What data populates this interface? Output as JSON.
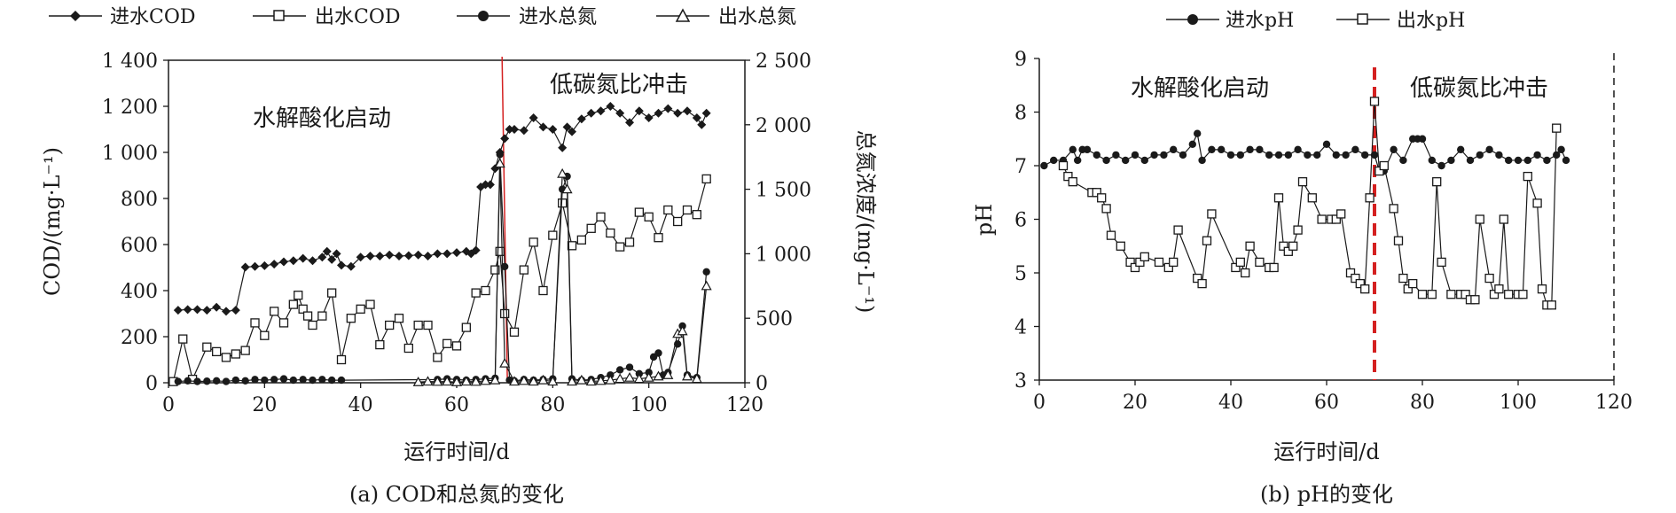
{
  "panel_a": {
    "caption": "(a) COD和总氮的变化",
    "xlabel": "运行时间/d",
    "ylabel_left": "COD/(mg·L⁻¹)",
    "ylabel_right": "总氮浓度/(mg·L⁻¹)",
    "legend": [
      "进水COD",
      "出水COD",
      "进水总氮",
      "出水总氮"
    ],
    "annotation_left": "水解酸化启动",
    "annotation_right": "低碳氮比冲击",
    "x_ticks": [
      "0",
      "20",
      "40",
      "60",
      "80",
      "100",
      "120"
    ],
    "y_left_ticks": [
      "0",
      "200",
      "400",
      "600",
      "800",
      "1 000",
      "1 200",
      "1 400"
    ],
    "y_right_ticks": [
      "0",
      "500",
      "1 000",
      "1 500",
      "2 000",
      "2 500"
    ]
  },
  "panel_b": {
    "caption": "(b) pH的变化",
    "xlabel": "运行时间/d",
    "ylabel": "pH",
    "legend": [
      "进水pH",
      "出水pH"
    ],
    "annotation_left": "水解酸化启动",
    "annotation_right": "低碳氮比冲击",
    "x_ticks": [
      "0",
      "20",
      "40",
      "60",
      "80",
      "100",
      "120"
    ],
    "y_ticks": [
      "3",
      "4",
      "5",
      "6",
      "7",
      "8",
      "9"
    ]
  },
  "colors": {
    "line": "#1a1a1a",
    "divider": "#d42020"
  },
  "chart_data": [
    {
      "type": "line",
      "title": "(a) COD和总氮的变化",
      "xlabel": "运行时间/d",
      "ylabel": "COD/(mg·L⁻¹)",
      "y2label": "总氮浓度/(mg·L⁻¹)",
      "xlim": [
        0,
        120
      ],
      "ylim": [
        0,
        1400
      ],
      "y2lim": [
        0,
        2500
      ],
      "grid": false,
      "legend_position": "top",
      "divider_x": 70,
      "series": [
        {
          "name": "进水COD",
          "axis": "left",
          "marker": "diamond-filled",
          "x": [
            2,
            4,
            6,
            8,
            10,
            12,
            14,
            16,
            18,
            20,
            22,
            24,
            26,
            28,
            30,
            32,
            33,
            34,
            35,
            36,
            38,
            40,
            42,
            44,
            46,
            48,
            50,
            52,
            54,
            56,
            58,
            60,
            62,
            63,
            64,
            65,
            66,
            67,
            68,
            69,
            70,
            71,
            72,
            74,
            76,
            78,
            80,
            82,
            83,
            84,
            86,
            88,
            90,
            92,
            94,
            96,
            98,
            100,
            102,
            104,
            106,
            108,
            110,
            111,
            112
          ],
          "y": [
            315,
            318,
            318,
            315,
            328,
            310,
            315,
            502,
            505,
            508,
            515,
            525,
            530,
            540,
            530,
            545,
            570,
            535,
            560,
            510,
            505,
            545,
            550,
            550,
            555,
            550,
            552,
            555,
            550,
            560,
            560,
            565,
            570,
            560,
            575,
            850,
            860,
            860,
            930,
            1000,
            1060,
            1100,
            1100,
            1095,
            1150,
            1110,
            1100,
            1020,
            1110,
            1090,
            1145,
            1170,
            1180,
            1200,
            1170,
            1130,
            1180,
            1150,
            1170,
            1190,
            1170,
            1180,
            1150,
            1120,
            1170
          ]
        },
        {
          "name": "出水COD",
          "axis": "left",
          "marker": "square-open",
          "x": [
            1,
            3,
            5,
            8,
            10,
            12,
            14,
            16,
            18,
            20,
            22,
            24,
            26,
            27,
            28,
            29,
            30,
            32,
            34,
            36,
            38,
            40,
            42,
            44,
            46,
            48,
            50,
            52,
            54,
            56,
            58,
            60,
            62,
            64,
            66,
            68,
            69,
            70,
            72,
            74,
            76,
            78,
            80,
            82,
            84,
            86,
            88,
            90,
            92,
            94,
            96,
            98,
            100,
            102,
            104,
            106,
            108,
            110,
            112
          ],
          "y": [
            5,
            190,
            15,
            155,
            135,
            110,
            125,
            140,
            260,
            205,
            310,
            260,
            340,
            380,
            320,
            290,
            250,
            290,
            390,
            100,
            280,
            320,
            340,
            165,
            250,
            280,
            150,
            250,
            250,
            110,
            170,
            160,
            240,
            390,
            400,
            490,
            570,
            300,
            220,
            490,
            610,
            400,
            640,
            780,
            595,
            620,
            670,
            720,
            650,
            590,
            610,
            740,
            720,
            630,
            750,
            700,
            750,
            730,
            885
          ]
        },
        {
          "name": "进水总氮",
          "axis": "right",
          "marker": "circle-filled",
          "x": [
            2,
            4,
            6,
            8,
            10,
            12,
            14,
            16,
            18,
            20,
            22,
            24,
            26,
            28,
            30,
            32,
            34,
            36,
            56,
            58,
            60,
            62,
            64,
            66,
            68,
            69,
            70,
            71,
            72,
            74,
            76,
            78,
            80,
            82,
            83,
            84,
            86,
            88,
            90,
            92,
            94,
            96,
            98,
            100,
            101,
            102,
            103,
            104,
            106,
            107,
            108,
            110,
            112
          ],
          "y": [
            10,
            15,
            10,
            12,
            15,
            10,
            20,
            15,
            25,
            20,
            25,
            30,
            20,
            25,
            20,
            25,
            20,
            20,
            25,
            30,
            25,
            20,
            25,
            30,
            35,
            1770,
            900,
            20,
            15,
            25,
            20,
            25,
            30,
            1500,
            1600,
            30,
            20,
            25,
            40,
            60,
            100,
            120,
            70,
            80,
            200,
            230,
            60,
            80,
            300,
            440,
            60,
            40,
            860
          ]
        },
        {
          "name": "出水总氮",
          "axis": "right",
          "marker": "triangle-open",
          "x": [
            52,
            54,
            56,
            58,
            60,
            62,
            64,
            66,
            68,
            69,
            70,
            72,
            74,
            76,
            78,
            80,
            82,
            83,
            84,
            86,
            88,
            90,
            92,
            94,
            96,
            98,
            100,
            102,
            104,
            106,
            107,
            108,
            110,
            112
          ],
          "y": [
            5,
            10,
            8,
            10,
            5,
            10,
            8,
            15,
            20,
            1700,
            150,
            10,
            15,
            10,
            20,
            10,
            1620,
            1500,
            10,
            20,
            10,
            15,
            20,
            30,
            40,
            30,
            40,
            50,
            60,
            380,
            400,
            50,
            30,
            750
          ]
        }
      ]
    },
    {
      "type": "line",
      "title": "(b) pH的变化",
      "xlabel": "运行时间/d",
      "ylabel": "pH",
      "xlim": [
        0,
        120
      ],
      "ylim": [
        3,
        9
      ],
      "grid": false,
      "legend_position": "top",
      "divider_x": 70,
      "series": [
        {
          "name": "进水pH",
          "marker": "circle-filled",
          "x": [
            1,
            3,
            5,
            7,
            8,
            9,
            10,
            12,
            14,
            16,
            18,
            20,
            22,
            24,
            26,
            28,
            30,
            32,
            33,
            34,
            36,
            38,
            40,
            42,
            44,
            46,
            48,
            50,
            52,
            54,
            56,
            58,
            60,
            62,
            64,
            66,
            68,
            70,
            71,
            72,
            74,
            76,
            78,
            79,
            80,
            82,
            84,
            86,
            88,
            90,
            92,
            94,
            96,
            98,
            100,
            102,
            104,
            106,
            108,
            109,
            110
          ],
          "y": [
            7.0,
            7.1,
            7.1,
            7.3,
            7.1,
            7.3,
            7.3,
            7.2,
            7.1,
            7.2,
            7.1,
            7.2,
            7.1,
            7.2,
            7.2,
            7.3,
            7.2,
            7.4,
            7.6,
            7.1,
            7.3,
            7.3,
            7.2,
            7.2,
            7.3,
            7.3,
            7.2,
            7.2,
            7.2,
            7.3,
            7.2,
            7.2,
            7.4,
            7.2,
            7.2,
            7.3,
            7.2,
            7.2,
            6.9,
            6.9,
            7.3,
            7.1,
            7.5,
            7.5,
            7.5,
            7.1,
            7.0,
            7.1,
            7.3,
            7.1,
            7.2,
            7.3,
            7.2,
            7.1,
            7.1,
            7.1,
            7.2,
            7.1,
            7.2,
            7.3,
            7.1
          ]
        },
        {
          "name": "出水pH",
          "marker": "square-open",
          "x": [
            5,
            6,
            7,
            11,
            12,
            13,
            14,
            15,
            17,
            19,
            20,
            21,
            22,
            25,
            27,
            28,
            29,
            33,
            34,
            35,
            36,
            41,
            42,
            43,
            44,
            46,
            48,
            49,
            50,
            51,
            52,
            53,
            54,
            55,
            57,
            59,
            61,
            62,
            63,
            65,
            66,
            67,
            68,
            69,
            70,
            71,
            72,
            74,
            75,
            76,
            77,
            78,
            80,
            82,
            83,
            84,
            86,
            88,
            89,
            90,
            91,
            92,
            94,
            95,
            96,
            97,
            98,
            100,
            101,
            102,
            104,
            105,
            106,
            107,
            108
          ],
          "y": [
            7.0,
            6.8,
            6.7,
            6.5,
            6.5,
            6.4,
            6.2,
            5.7,
            5.5,
            5.2,
            5.1,
            5.2,
            5.3,
            5.2,
            5.1,
            5.2,
            5.8,
            4.9,
            4.8,
            5.6,
            6.1,
            5.1,
            5.2,
            5.0,
            5.5,
            5.2,
            5.1,
            5.1,
            6.4,
            5.5,
            5.4,
            5.5,
            5.8,
            6.7,
            6.4,
            6.0,
            6.0,
            6.0,
            6.1,
            5.0,
            4.9,
            4.8,
            4.7,
            6.4,
            8.2,
            6.9,
            7.0,
            6.2,
            5.6,
            4.9,
            4.7,
            4.8,
            4.6,
            4.6,
            6.7,
            5.2,
            4.6,
            4.6,
            4.6,
            4.5,
            4.5,
            6.0,
            4.9,
            4.6,
            4.7,
            6.0,
            4.6,
            4.6,
            4.6,
            6.8,
            6.3,
            4.7,
            4.4,
            4.4,
            7.7
          ]
        }
      ]
    }
  ]
}
